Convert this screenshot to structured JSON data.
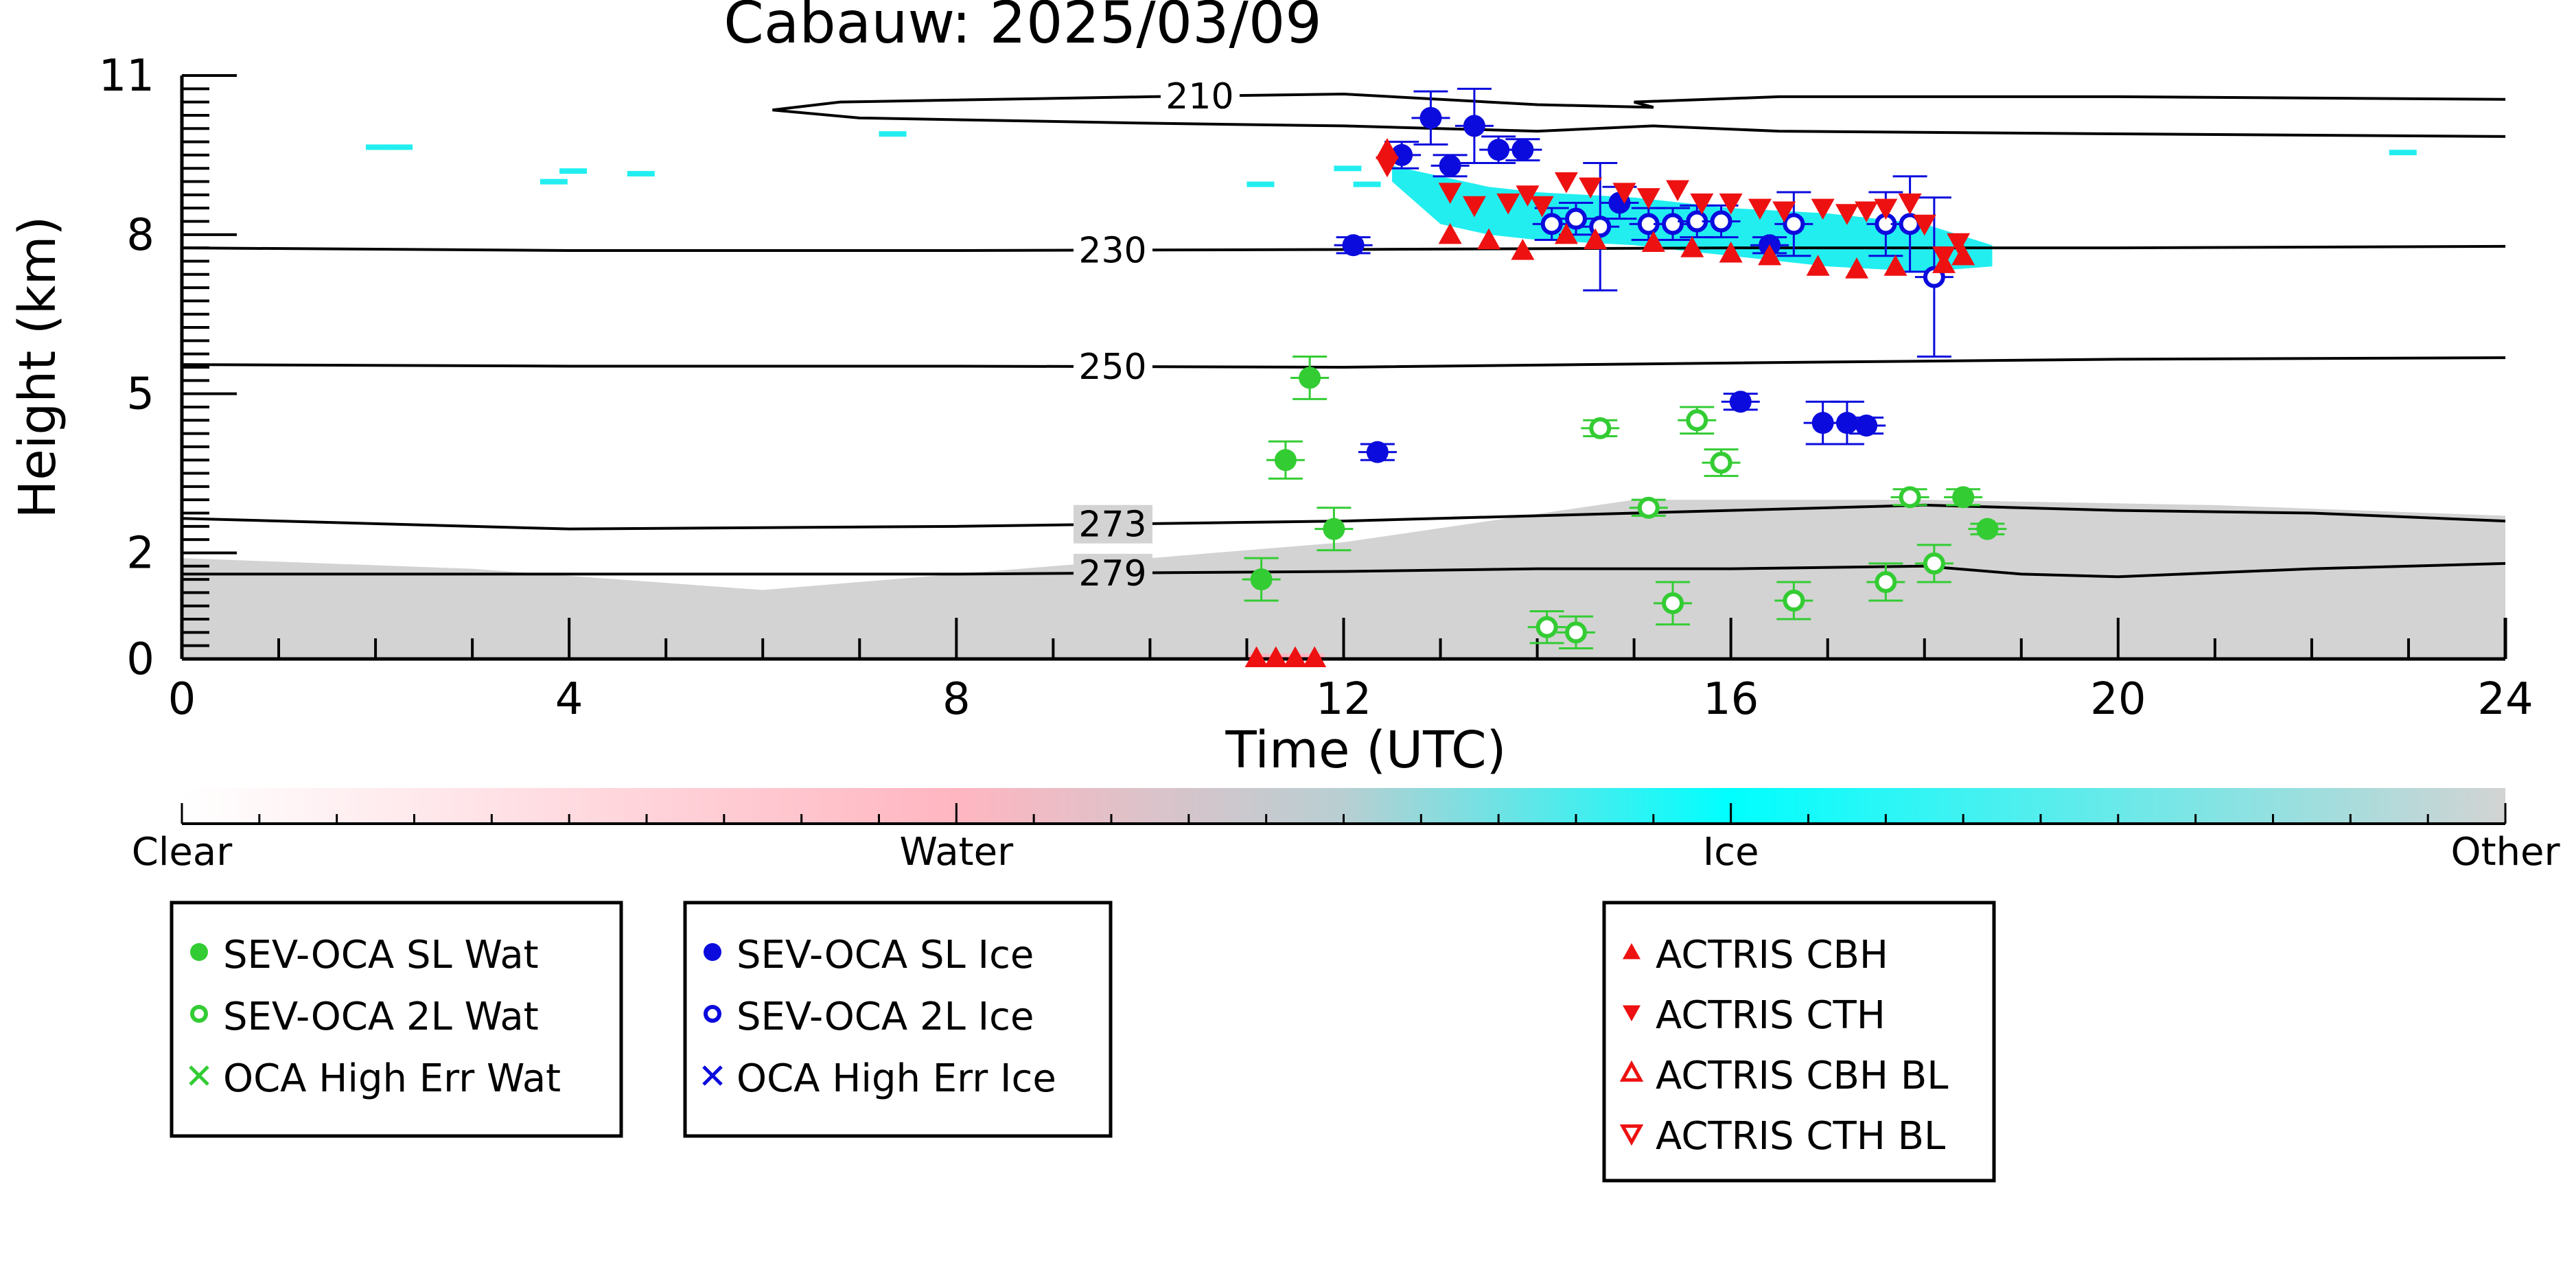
{
  "chart_data": {
    "type": "scatter",
    "title": "Cabauw: 2025/03/09",
    "xlabel": "Time (UTC)",
    "ylabel": "Height (km)",
    "xlim": [
      0,
      24
    ],
    "ylim": [
      0,
      11
    ],
    "x_ticks": [
      0,
      4,
      8,
      12,
      16,
      20,
      24
    ],
    "y_ticks": [
      0,
      2,
      5,
      8,
      11
    ],
    "y_tick_labels": [
      "0",
      "2",
      "5",
      "8",
      "11"
    ],
    "background": {
      "description": "cloud classification field",
      "low_layer": {
        "class": "Other",
        "x": [
          0,
          24
        ],
        "top_km": [
          1.9,
          1.7,
          1.3,
          1.75,
          2.2,
          3.0,
          3.0,
          2.9,
          2.7
        ]
      },
      "ice_layer": {
        "class": "Ice",
        "x": [
          12.5,
          18.7
        ],
        "y": [
          7.3,
          9.3
        ]
      },
      "water_streak": {
        "class": "Water",
        "x": [
          11.0,
          11.8
        ],
        "y": [
          0,
          0.1
        ]
      }
    },
    "contours": [
      {
        "label": "210",
        "label_x": 10.5,
        "points": [
          [
            6.1,
            10.35
          ],
          [
            6.8,
            10.5
          ],
          [
            10.0,
            10.6
          ],
          [
            12.0,
            10.65
          ],
          [
            14.0,
            10.45
          ],
          [
            15.2,
            10.4
          ],
          [
            15.0,
            10.5
          ],
          [
            16.5,
            10.6
          ],
          [
            20.0,
            10.6
          ],
          [
            24.0,
            10.55
          ]
        ]
      },
      {
        "label": "",
        "label_x": null,
        "points": [
          [
            6.1,
            10.35
          ],
          [
            7.0,
            10.2
          ],
          [
            10.0,
            10.1
          ],
          [
            12.0,
            10.05
          ],
          [
            14.0,
            9.95
          ],
          [
            15.2,
            10.05
          ],
          [
            16.5,
            9.95
          ],
          [
            20.0,
            9.9
          ],
          [
            24.0,
            9.85
          ]
        ]
      },
      {
        "label": "230",
        "label_x": 9.6,
        "points": [
          [
            0,
            7.75
          ],
          [
            4,
            7.7
          ],
          [
            8,
            7.7
          ],
          [
            12,
            7.72
          ],
          [
            16,
            7.75
          ],
          [
            20,
            7.75
          ],
          [
            24,
            7.78
          ]
        ]
      },
      {
        "label": "250",
        "label_x": 9.6,
        "points": [
          [
            0,
            5.55
          ],
          [
            4,
            5.52
          ],
          [
            8,
            5.52
          ],
          [
            12,
            5.5
          ],
          [
            16,
            5.58
          ],
          [
            20,
            5.65
          ],
          [
            24,
            5.68
          ]
        ]
      },
      {
        "label": "273",
        "label_x": 9.6,
        "points": [
          [
            0,
            2.65
          ],
          [
            4,
            2.45
          ],
          [
            8,
            2.5
          ],
          [
            12,
            2.6
          ],
          [
            14,
            2.7
          ],
          [
            16,
            2.8
          ],
          [
            18,
            2.9
          ],
          [
            20,
            2.8
          ],
          [
            22,
            2.75
          ],
          [
            24,
            2.6
          ]
        ]
      },
      {
        "label": "279",
        "label_x": 9.6,
        "points": [
          [
            0,
            1.6
          ],
          [
            4,
            1.6
          ],
          [
            8,
            1.6
          ],
          [
            12,
            1.65
          ],
          [
            14,
            1.7
          ],
          [
            16,
            1.7
          ],
          [
            18,
            1.75
          ],
          [
            19,
            1.6
          ],
          [
            20,
            1.55
          ],
          [
            22,
            1.7
          ],
          [
            24,
            1.8
          ]
        ]
      }
    ],
    "colorbar": {
      "labels": [
        "Clear",
        "Water",
        "Ice",
        "Other"
      ],
      "colors": [
        "#ffffff",
        "#ffb6c1",
        "#00ffff",
        "#d3d3d3"
      ]
    },
    "series": [
      {
        "name": "SEV-OCA SL Wat",
        "marker": "circle-filled",
        "color": "#33cc33",
        "points": [
          [
            11.15,
            1.5,
            0.4
          ],
          [
            11.4,
            3.75,
            0.35
          ],
          [
            11.65,
            5.3,
            0.4
          ],
          [
            11.9,
            2.45,
            0.4
          ],
          [
            18.4,
            3.05,
            0.15
          ],
          [
            18.65,
            2.45,
            0.1
          ]
        ]
      },
      {
        "name": "SEV-OCA 2L Wat",
        "marker": "circle-open",
        "color": "#33cc33",
        "points": [
          [
            14.1,
            0.6,
            0.3
          ],
          [
            14.4,
            0.5,
            0.3
          ],
          [
            14.65,
            4.35,
            0.15
          ],
          [
            15.15,
            2.85,
            0.15
          ],
          [
            15.4,
            1.05,
            0.4
          ],
          [
            15.65,
            4.5,
            0.25
          ],
          [
            15.9,
            3.7,
            0.25
          ],
          [
            16.65,
            1.1,
            0.35
          ],
          [
            17.6,
            1.45,
            0.35
          ],
          [
            17.85,
            3.05,
            0.15
          ],
          [
            18.1,
            1.8,
            0.35
          ]
        ]
      },
      {
        "name": "OCA High Err Wat",
        "marker": "x",
        "color": "#33cc33",
        "points": []
      },
      {
        "name": "SEV-OCA SL Ice",
        "marker": "circle-filled",
        "color": "#0b0bdd",
        "points": [
          [
            12.1,
            7.8,
            0.15
          ],
          [
            12.35,
            3.9,
            0.15
          ],
          [
            12.6,
            9.5,
            0.25
          ],
          [
            12.9,
            10.2,
            0.5
          ],
          [
            13.1,
            9.3,
            0.2
          ],
          [
            13.35,
            10.05,
            0.7
          ],
          [
            13.6,
            9.6,
            0.25
          ],
          [
            13.85,
            9.6,
            0.2
          ],
          [
            14.85,
            8.6,
            0.3
          ],
          [
            16.1,
            4.85,
            0.15
          ],
          [
            16.4,
            7.8,
            0.15
          ],
          [
            16.95,
            4.45,
            0.4
          ],
          [
            17.2,
            4.45,
            0.4
          ],
          [
            17.4,
            4.4,
            0.15
          ]
        ]
      },
      {
        "name": "SEV-OCA 2L Ice",
        "marker": "circle-open",
        "color": "#0b0bdd",
        "points": [
          [
            14.15,
            8.2,
            0.3
          ],
          [
            14.4,
            8.3,
            0.3
          ],
          [
            14.65,
            8.15,
            1.2
          ],
          [
            15.15,
            8.2,
            0.3
          ],
          [
            15.4,
            8.2,
            0.3
          ],
          [
            15.65,
            8.25,
            0.3
          ],
          [
            15.9,
            8.25,
            0.3
          ],
          [
            16.65,
            8.2,
            0.6
          ],
          [
            17.6,
            8.2,
            0.6
          ],
          [
            17.85,
            8.2,
            0.9
          ],
          [
            18.1,
            7.2,
            1.5
          ]
        ]
      },
      {
        "name": "OCA High Err Ice",
        "marker": "x",
        "color": "#0b0bdd",
        "points": []
      },
      {
        "name": "ACTRIS CBH",
        "marker": "triangle-up-filled",
        "color": "#ee1111",
        "points": [
          [
            12.45,
            9.6
          ],
          [
            13.1,
            8.0
          ],
          [
            13.5,
            7.9
          ],
          [
            13.85,
            7.7
          ],
          [
            14.3,
            8.0
          ],
          [
            14.6,
            7.9
          ],
          [
            15.2,
            7.85
          ],
          [
            15.6,
            7.75
          ],
          [
            16.0,
            7.65
          ],
          [
            16.4,
            7.6
          ],
          [
            16.9,
            7.4
          ],
          [
            17.3,
            7.35
          ],
          [
            17.7,
            7.4
          ],
          [
            18.2,
            7.45
          ],
          [
            18.4,
            7.6
          ],
          [
            11.1,
            0.02
          ],
          [
            11.3,
            0.02
          ],
          [
            11.5,
            0.02
          ],
          [
            11.7,
            0.02
          ]
        ]
      },
      {
        "name": "ACTRIS CTH",
        "marker": "triangle-down-filled",
        "color": "#ee1111",
        "points": [
          [
            12.45,
            9.3
          ],
          [
            13.1,
            8.8
          ],
          [
            13.35,
            8.55
          ],
          [
            13.7,
            8.6
          ],
          [
            13.9,
            8.75
          ],
          [
            14.05,
            8.55
          ],
          [
            14.3,
            9.0
          ],
          [
            14.55,
            8.9
          ],
          [
            14.9,
            8.8
          ],
          [
            15.15,
            8.7
          ],
          [
            15.45,
            8.85
          ],
          [
            15.7,
            8.6
          ],
          [
            16.0,
            8.6
          ],
          [
            16.3,
            8.5
          ],
          [
            16.55,
            8.45
          ],
          [
            16.95,
            8.5
          ],
          [
            17.2,
            8.4
          ],
          [
            17.4,
            8.45
          ],
          [
            17.6,
            8.5
          ],
          [
            17.85,
            8.6
          ],
          [
            18.0,
            8.2
          ],
          [
            18.2,
            7.6
          ],
          [
            18.35,
            7.85
          ]
        ]
      },
      {
        "name": "ACTRIS CBH BL",
        "marker": "triangle-up-open",
        "color": "#ee1111",
        "points": []
      },
      {
        "name": "ACTRIS CTH BL",
        "marker": "triangle-down-open",
        "color": "#ee1111",
        "points": []
      }
    ],
    "legend_boxes": [
      [
        "SEV-OCA SL Wat",
        "SEV-OCA 2L Wat",
        "OCA High Err Wat"
      ],
      [
        "SEV-OCA SL Ice",
        "SEV-OCA 2L Ice",
        "OCA High Err Ice"
      ],
      [
        "ACTRIS CBH",
        "ACTRIS CTH",
        "ACTRIS CBH BL",
        "ACTRIS CTH BL"
      ]
    ],
    "legend_placement": "below"
  }
}
